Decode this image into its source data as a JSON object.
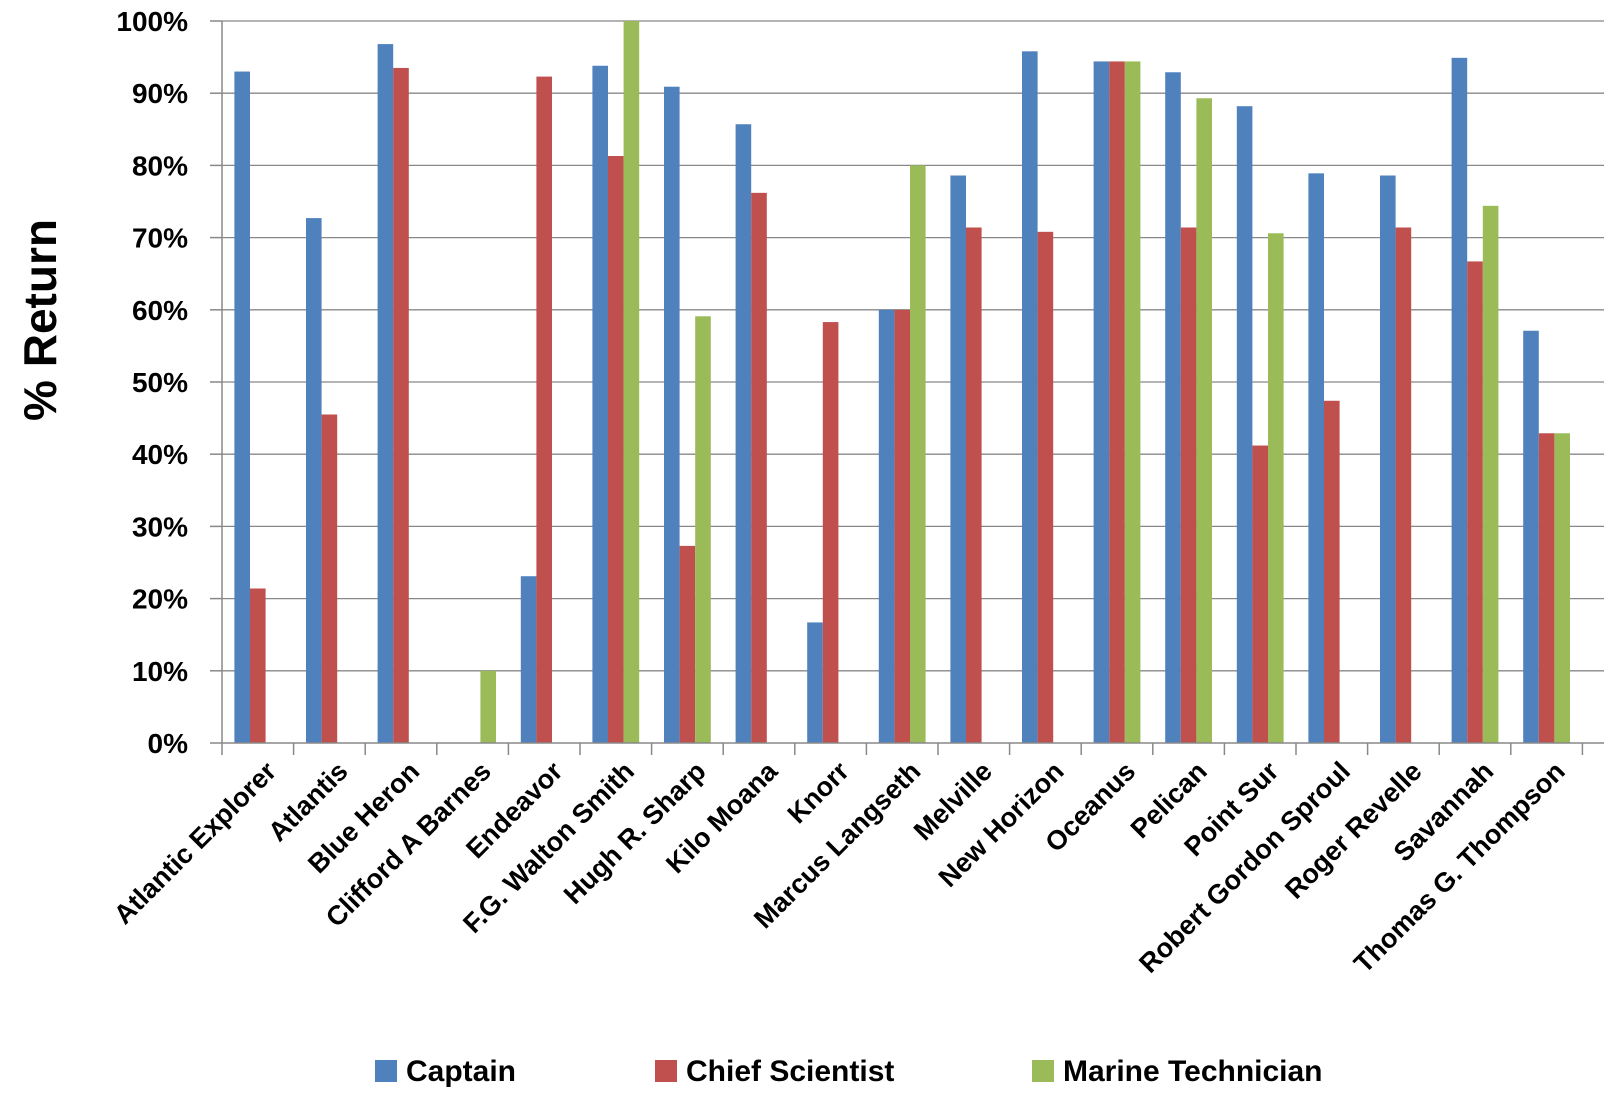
{
  "chart_data": {
    "type": "bar",
    "title": "",
    "xlabel": "",
    "ylabel": "% Return",
    "ylim": [
      0,
      100
    ],
    "ytick_step": 10,
    "ytick_suffix": "%",
    "grid": true,
    "legend_position": "bottom",
    "categories": [
      "Atlantic Explorer",
      "Atlantis",
      "Blue Heron",
      "Clifford A Barnes",
      "Endeavor",
      "F.G. Walton Smith",
      "Hugh R. Sharp",
      "Kilo Moana",
      "Knorr",
      "Marcus Langseth",
      "Melville",
      "New Horizon",
      "Oceanus",
      "Pelican",
      "Point Sur",
      "Robert Gordon Sproul",
      "Roger Revelle",
      "Savannah",
      "Thomas G. Thompson"
    ],
    "series": [
      {
        "name": "Captain",
        "color": "#4f81bd",
        "values": [
          93,
          72.7,
          96.8,
          null,
          23.1,
          93.8,
          90.9,
          85.7,
          16.7,
          60,
          78.6,
          95.8,
          94.4,
          92.9,
          88.2,
          78.9,
          78.6,
          94.9,
          57.1
        ]
      },
      {
        "name": "Chief Scientist",
        "color": "#c0504d",
        "values": [
          21.4,
          45.5,
          93.5,
          null,
          92.3,
          81.3,
          27.3,
          76.2,
          58.3,
          60,
          71.4,
          70.8,
          94.4,
          71.4,
          41.2,
          47.4,
          71.4,
          66.7,
          42.9
        ]
      },
      {
        "name": "Marine Technician",
        "color": "#9bbb59",
        "values": [
          null,
          null,
          null,
          10,
          null,
          100,
          59.1,
          null,
          null,
          80,
          null,
          null,
          94.4,
          89.3,
          70.6,
          null,
          null,
          74.4,
          42.9
        ]
      }
    ]
  }
}
